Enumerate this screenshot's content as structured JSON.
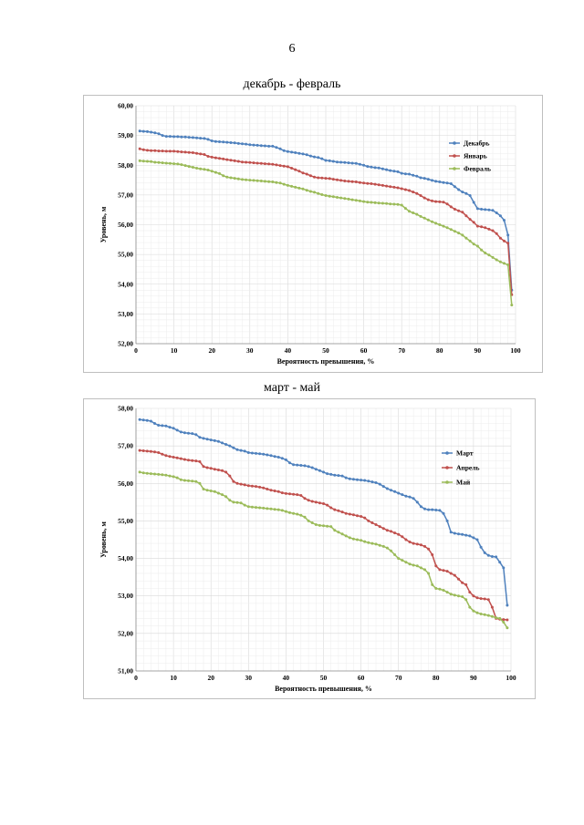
{
  "page": {
    "number": "6"
  },
  "colors": {
    "series1": "#4f81bd",
    "series2": "#c0504d",
    "series3": "#9bbb59"
  },
  "chart_data": [
    {
      "type": "line",
      "title": "декабрь - февраль",
      "xlabel": "Вероятность превышения, %",
      "ylabel": "Уровень, м",
      "xlim": [
        0,
        100
      ],
      "ylim": [
        52,
        60
      ],
      "x_ticks": [
        "0",
        "10",
        "20",
        "30",
        "40",
        "50",
        "60",
        "70",
        "80",
        "90",
        "100"
      ],
      "y_ticks": [
        "52,00",
        "53,00",
        "54,00",
        "55,00",
        "56,00",
        "57,00",
        "58,00",
        "59,00",
        "60,00"
      ],
      "grid": true,
      "legend_position": "right",
      "x": [
        1,
        2,
        3,
        4,
        5,
        6,
        7,
        8,
        9,
        10,
        11,
        12,
        13,
        14,
        15,
        16,
        17,
        18,
        19,
        20,
        21,
        22,
        23,
        24,
        25,
        26,
        27,
        28,
        29,
        30,
        31,
        32,
        33,
        34,
        35,
        36,
        37,
        38,
        39,
        40,
        41,
        42,
        43,
        44,
        45,
        46,
        47,
        48,
        49,
        50,
        51,
        52,
        53,
        54,
        55,
        56,
        57,
        58,
        59,
        60,
        61,
        62,
        63,
        64,
        65,
        66,
        67,
        68,
        69,
        70,
        71,
        72,
        73,
        74,
        75,
        76,
        77,
        78,
        79,
        80,
        81,
        82,
        83,
        84,
        85,
        86,
        87,
        88,
        89,
        90,
        91,
        92,
        93,
        94,
        95,
        96,
        97,
        98,
        99
      ],
      "series": [
        {
          "name": "Декабрь",
          "color": "#4f81bd",
          "values": [
            59.15,
            59.14,
            59.13,
            59.11,
            59.09,
            59.06,
            59.0,
            58.97,
            58.97,
            58.96,
            58.96,
            58.95,
            58.95,
            58.94,
            58.93,
            58.92,
            58.91,
            58.9,
            58.87,
            58.82,
            58.8,
            58.79,
            58.78,
            58.77,
            58.76,
            58.75,
            58.73,
            58.72,
            58.71,
            58.69,
            58.68,
            58.67,
            58.66,
            58.65,
            58.64,
            58.64,
            58.6,
            58.55,
            58.49,
            58.46,
            58.44,
            58.42,
            58.4,
            58.38,
            58.35,
            58.31,
            58.28,
            58.26,
            58.22,
            58.16,
            58.15,
            58.13,
            58.11,
            58.1,
            58.09,
            58.08,
            58.07,
            58.06,
            58.03,
            58.0,
            57.96,
            57.94,
            57.92,
            57.91,
            57.88,
            57.85,
            57.82,
            57.8,
            57.78,
            57.73,
            57.71,
            57.7,
            57.66,
            57.63,
            57.58,
            57.56,
            57.53,
            57.49,
            57.46,
            57.44,
            57.42,
            57.4,
            57.38,
            57.28,
            57.18,
            57.1,
            57.05,
            56.98,
            56.75,
            56.54,
            56.52,
            56.51,
            56.5,
            56.48,
            56.4,
            56.3,
            56.15,
            55.65,
            53.8
          ]
        },
        {
          "name": "Январь",
          "color": "#c0504d",
          "values": [
            58.55,
            58.52,
            58.5,
            58.49,
            58.49,
            58.48,
            58.48,
            58.47,
            58.47,
            58.47,
            58.46,
            58.45,
            58.44,
            58.43,
            58.42,
            58.4,
            58.38,
            58.36,
            58.3,
            58.27,
            58.25,
            58.23,
            58.21,
            58.19,
            58.17,
            58.15,
            58.13,
            58.11,
            58.1,
            58.09,
            58.08,
            58.07,
            58.06,
            58.05,
            58.04,
            58.03,
            58.01,
            57.99,
            57.97,
            57.95,
            57.9,
            57.85,
            57.8,
            57.74,
            57.7,
            57.65,
            57.6,
            57.58,
            57.57,
            57.56,
            57.55,
            57.53,
            57.51,
            57.49,
            57.47,
            57.46,
            57.45,
            57.44,
            57.42,
            57.4,
            57.39,
            57.38,
            57.36,
            57.34,
            57.32,
            57.3,
            57.28,
            57.26,
            57.24,
            57.21,
            57.18,
            57.15,
            57.1,
            57.05,
            56.98,
            56.9,
            56.84,
            56.8,
            56.78,
            56.77,
            56.76,
            56.7,
            56.6,
            56.52,
            56.47,
            56.42,
            56.3,
            56.18,
            56.08,
            55.95,
            55.93,
            55.9,
            55.85,
            55.8,
            55.7,
            55.55,
            55.45,
            55.38,
            53.65
          ]
        },
        {
          "name": "Февраль",
          "color": "#9bbb59",
          "values": [
            58.15,
            58.14,
            58.13,
            58.12,
            58.1,
            58.09,
            58.08,
            58.07,
            58.06,
            58.05,
            58.04,
            58.02,
            57.99,
            57.96,
            57.93,
            57.9,
            57.88,
            57.86,
            57.84,
            57.8,
            57.76,
            57.72,
            57.65,
            57.6,
            57.58,
            57.56,
            57.54,
            57.52,
            57.51,
            57.5,
            57.49,
            57.48,
            57.47,
            57.46,
            57.45,
            57.44,
            57.42,
            57.4,
            57.36,
            57.32,
            57.29,
            57.26,
            57.23,
            57.2,
            57.16,
            57.12,
            57.09,
            57.05,
            57.01,
            56.98,
            56.96,
            56.94,
            56.92,
            56.9,
            56.88,
            56.86,
            56.84,
            56.82,
            56.8,
            56.78,
            56.76,
            56.75,
            56.74,
            56.73,
            56.72,
            56.71,
            56.7,
            56.69,
            56.68,
            56.66,
            56.55,
            56.45,
            56.4,
            56.35,
            56.28,
            56.22,
            56.16,
            56.1,
            56.05,
            56.0,
            55.95,
            55.9,
            55.84,
            55.78,
            55.72,
            55.65,
            55.55,
            55.45,
            55.35,
            55.28,
            55.15,
            55.05,
            54.98,
            54.9,
            54.82,
            54.75,
            54.7,
            54.65,
            53.3
          ]
        }
      ]
    },
    {
      "type": "line",
      "title": "март - май",
      "xlabel": "Вероятность превышения, %",
      "ylabel": "Уровень, м",
      "xlim": [
        0,
        100
      ],
      "ylim": [
        51,
        58
      ],
      "x_ticks": [
        "0",
        "10",
        "20",
        "30",
        "40",
        "50",
        "60",
        "70",
        "80",
        "90",
        "100"
      ],
      "y_ticks": [
        "51,00",
        "52,00",
        "53,00",
        "54,00",
        "55,00",
        "56,00",
        "57,00",
        "58,00"
      ],
      "grid": true,
      "legend_position": "right",
      "x": [
        1,
        2,
        3,
        4,
        5,
        6,
        7,
        8,
        9,
        10,
        11,
        12,
        13,
        14,
        15,
        16,
        17,
        18,
        19,
        20,
        21,
        22,
        23,
        24,
        25,
        26,
        27,
        28,
        29,
        30,
        31,
        32,
        33,
        34,
        35,
        36,
        37,
        38,
        39,
        40,
        41,
        42,
        43,
        44,
        45,
        46,
        47,
        48,
        49,
        50,
        51,
        52,
        53,
        54,
        55,
        56,
        57,
        58,
        59,
        60,
        61,
        62,
        63,
        64,
        65,
        66,
        67,
        68,
        69,
        70,
        71,
        72,
        73,
        74,
        75,
        76,
        77,
        78,
        79,
        80,
        81,
        82,
        83,
        84,
        85,
        86,
        87,
        88,
        89,
        90,
        91,
        92,
        93,
        94,
        95,
        96,
        97,
        98,
        99
      ],
      "series": [
        {
          "name": "Март",
          "color": "#4f81bd",
          "values": [
            57.7,
            57.69,
            57.68,
            57.66,
            57.6,
            57.55,
            57.54,
            57.53,
            57.5,
            57.47,
            57.42,
            57.37,
            57.35,
            57.34,
            57.33,
            57.3,
            57.23,
            57.2,
            57.18,
            57.16,
            57.14,
            57.12,
            57.08,
            57.04,
            57.0,
            56.95,
            56.9,
            56.88,
            56.86,
            56.82,
            56.81,
            56.8,
            56.79,
            56.78,
            56.76,
            56.74,
            56.72,
            56.7,
            56.67,
            56.63,
            56.55,
            56.5,
            56.49,
            56.48,
            56.47,
            56.45,
            56.42,
            56.38,
            56.34,
            56.3,
            56.26,
            56.24,
            56.22,
            56.21,
            56.2,
            56.15,
            56.12,
            56.11,
            56.1,
            56.09,
            56.08,
            56.06,
            56.04,
            56.02,
            55.98,
            55.92,
            55.86,
            55.82,
            55.78,
            55.74,
            55.7,
            55.66,
            55.64,
            55.6,
            55.5,
            55.38,
            55.32,
            55.3,
            55.3,
            55.29,
            55.28,
            55.2,
            55.0,
            54.7,
            54.67,
            54.65,
            54.64,
            54.62,
            54.6,
            54.55,
            54.5,
            54.3,
            54.15,
            54.08,
            54.05,
            54.04,
            53.9,
            53.75,
            52.75
          ]
        },
        {
          "name": "Апрель",
          "color": "#c0504d",
          "values": [
            56.88,
            56.87,
            56.86,
            56.85,
            56.84,
            56.82,
            56.78,
            56.74,
            56.72,
            56.7,
            56.68,
            56.66,
            56.64,
            56.62,
            56.61,
            56.6,
            56.58,
            56.45,
            56.42,
            56.4,
            56.38,
            56.36,
            56.34,
            56.3,
            56.2,
            56.05,
            56.0,
            55.98,
            55.96,
            55.94,
            55.93,
            55.92,
            55.9,
            55.88,
            55.85,
            55.82,
            55.8,
            55.78,
            55.75,
            55.73,
            55.72,
            55.71,
            55.7,
            55.68,
            55.6,
            55.55,
            55.52,
            55.5,
            55.48,
            55.46,
            55.42,
            55.35,
            55.3,
            55.27,
            55.24,
            55.2,
            55.18,
            55.16,
            55.14,
            55.12,
            55.08,
            55.0,
            54.95,
            54.9,
            54.85,
            54.8,
            54.75,
            54.72,
            54.68,
            54.64,
            54.58,
            54.5,
            54.44,
            54.4,
            54.38,
            54.36,
            54.32,
            54.25,
            54.1,
            53.8,
            53.7,
            53.68,
            53.66,
            53.6,
            53.55,
            53.45,
            53.35,
            53.3,
            53.1,
            53.0,
            52.95,
            52.93,
            52.92,
            52.9,
            52.7,
            52.4,
            52.38,
            52.37,
            52.36
          ]
        },
        {
          "name": "Май",
          "color": "#9bbb59",
          "values": [
            56.3,
            56.28,
            56.27,
            56.26,
            56.25,
            56.24,
            56.23,
            56.22,
            56.2,
            56.18,
            56.15,
            56.1,
            56.08,
            56.07,
            56.06,
            56.05,
            56.0,
            55.85,
            55.82,
            55.8,
            55.78,
            55.74,
            55.7,
            55.65,
            55.55,
            55.5,
            55.49,
            55.48,
            55.42,
            55.38,
            55.37,
            55.36,
            55.35,
            55.34,
            55.33,
            55.32,
            55.31,
            55.3,
            55.28,
            55.25,
            55.22,
            55.2,
            55.18,
            55.15,
            55.1,
            55.0,
            54.95,
            54.9,
            54.88,
            54.87,
            54.86,
            54.85,
            54.75,
            54.7,
            54.65,
            54.6,
            54.55,
            54.52,
            54.5,
            54.48,
            54.45,
            54.42,
            54.4,
            54.38,
            54.35,
            54.32,
            54.28,
            54.2,
            54.1,
            54.0,
            53.95,
            53.9,
            53.85,
            53.82,
            53.8,
            53.75,
            53.7,
            53.6,
            53.3,
            53.2,
            53.18,
            53.15,
            53.1,
            53.05,
            53.02,
            53.0,
            52.98,
            52.9,
            52.7,
            52.6,
            52.55,
            52.52,
            52.5,
            52.48,
            52.45,
            52.42,
            52.4,
            52.3,
            52.15
          ]
        }
      ]
    }
  ]
}
